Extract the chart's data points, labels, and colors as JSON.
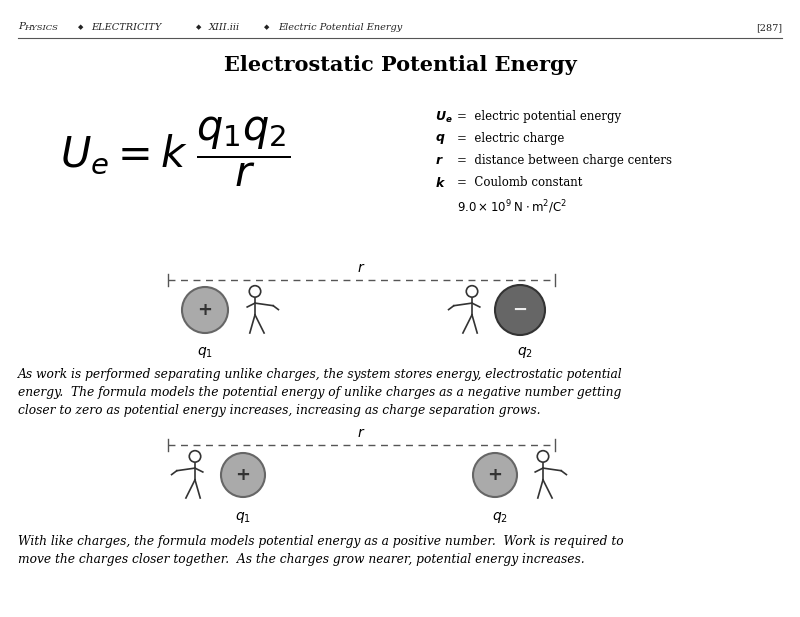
{
  "title": "Electrostatic Potential Energy",
  "header_p": "P",
  "header_hysics": "HYSICS",
  "header_electricity": "ELECTRICITY",
  "header_xiii": "XIII.iii",
  "header_eppe": "Electric Potential Energy",
  "header_page": "[287]",
  "para1": "As work is performed separating unlike charges, the system stores energy, electrostatic potential\nenergy.  The formula models the potential energy of unlike charges as a negative number getting\ncloser to zero as potential energy increases, increasing as charge separation grows.",
  "para2": "With like charges, the formula models potential energy as a positive number.  Work is required to\nmove the charges closer together.  As the charges grow nearer, potential energy increases.",
  "bg_color": "#ffffff",
  "text_color": "#000000",
  "gray_color": "#888888",
  "dark_color": "#555555"
}
